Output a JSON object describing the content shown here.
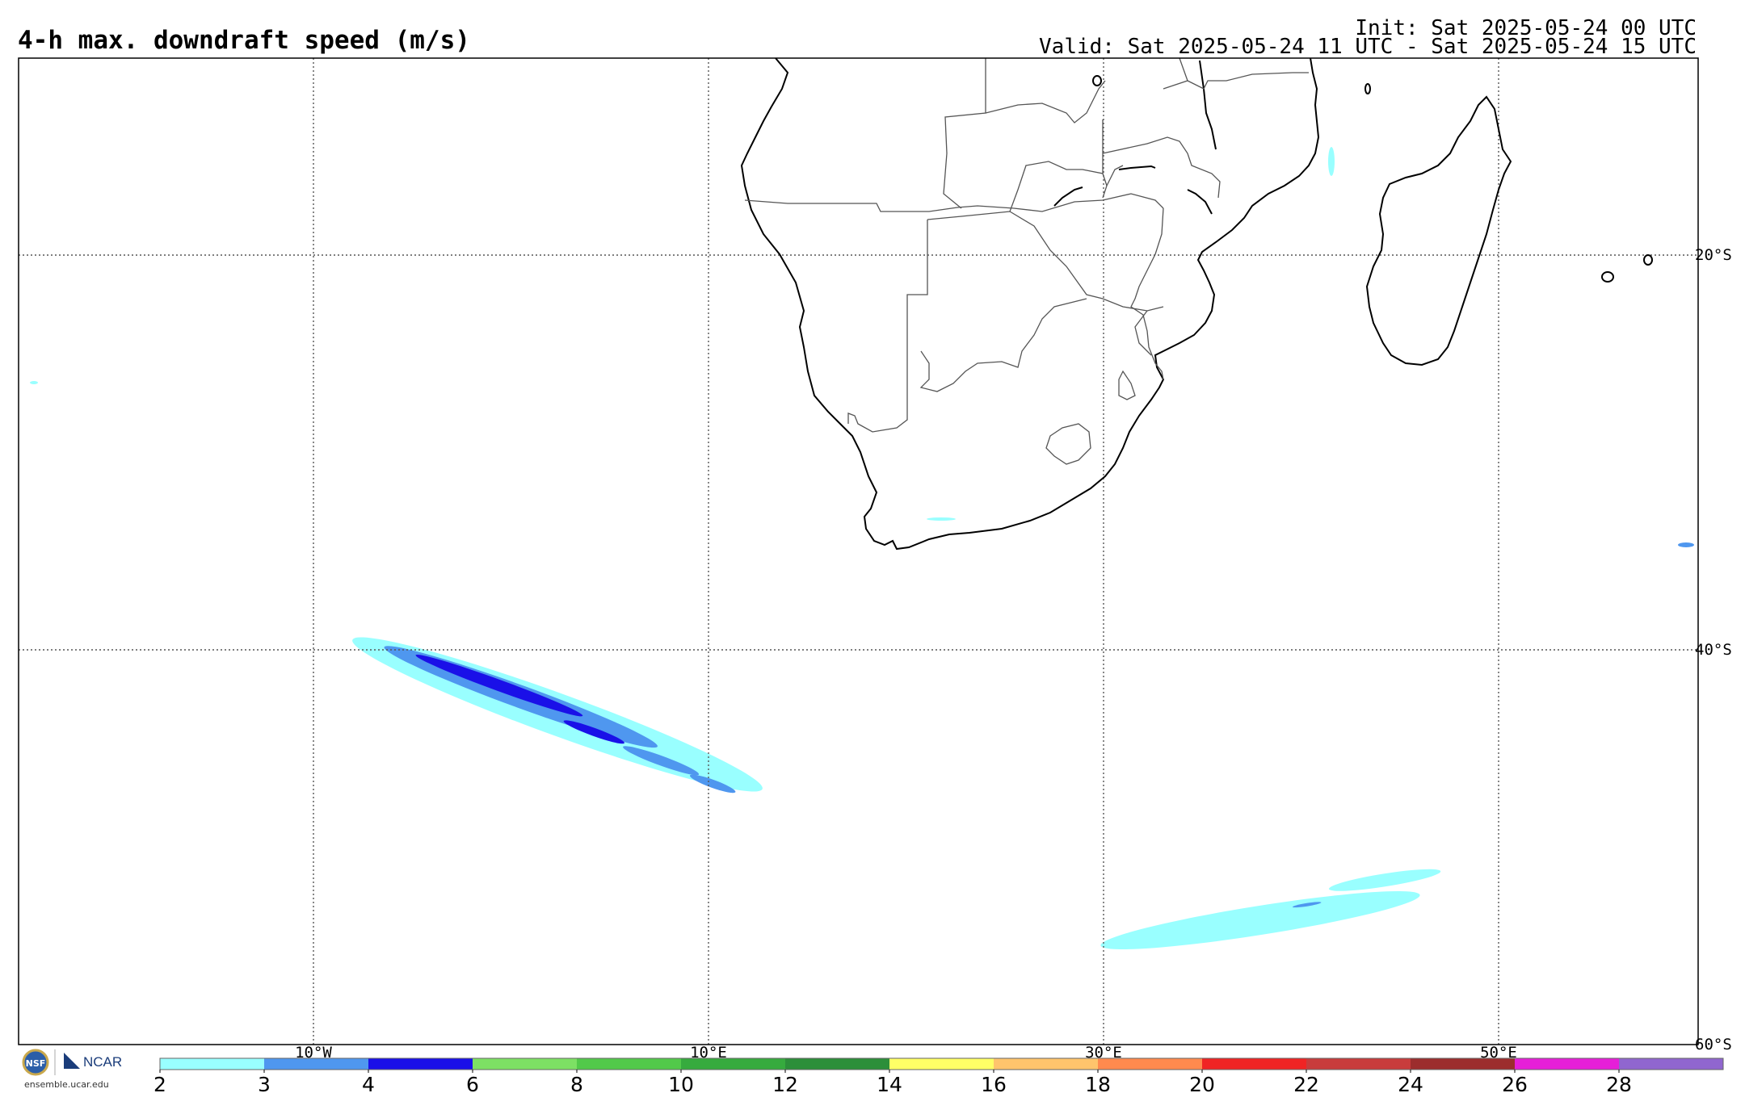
{
  "header": {
    "title": "4-h max. downdraft speed (m/s)",
    "init": "Init: Sat 2025-05-24 00 UTC",
    "valid": "Valid: Sat 2025-05-24 11 UTC - Sat 2025-05-24 15 UTC"
  },
  "map": {
    "lon_labels": [
      "10°W",
      "10°E",
      "30°E",
      "50°E"
    ],
    "lat_labels": [
      "20°S",
      "40°S",
      "60°S"
    ],
    "colors": {
      "frame": "#000000",
      "grid": "#555555",
      "coast": "#000000",
      "border": "#555555"
    }
  },
  "colorbar": {
    "tick_labels": [
      "2",
      "3",
      "4",
      "6",
      "8",
      "10",
      "12",
      "14",
      "16",
      "18",
      "20",
      "22",
      "24",
      "26",
      "28"
    ],
    "colors": [
      "#99ffff",
      "#4f97ef",
      "#1a10e8",
      "#7de064",
      "#52c94a",
      "#36ab3e",
      "#2c8f3a",
      "#ffff66",
      "#ffc46c",
      "#ff8a4e",
      "#f02424",
      "#c83c3c",
      "#9c2d2d",
      "#e61fd8",
      "#9066cf"
    ]
  },
  "branding": {
    "logo_text": "NCAR",
    "url": "ensemble.ucar.edu",
    "logo_icon": "nsf-ncar-logo-icon"
  }
}
